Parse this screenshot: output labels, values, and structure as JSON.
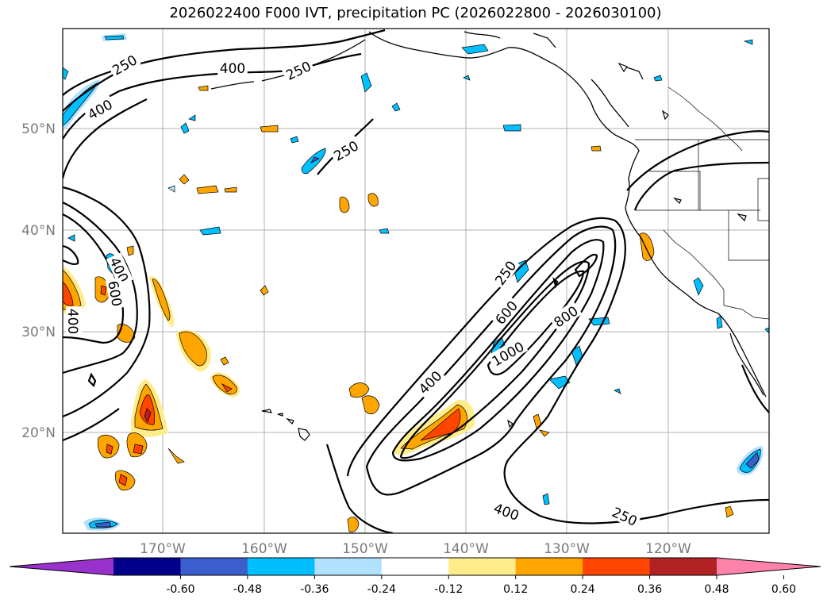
{
  "title": "2026022400 F000 IVT, precipitation PC (2026022800 - 2026030100)",
  "lon_labels": [
    "170°W",
    "160°W",
    "150°W",
    "140°W",
    "130°W",
    "120°W"
  ],
  "lat_labels": [
    "50°N",
    "40°N",
    "30°N",
    "20°N"
  ],
  "contour_labels": [
    "250",
    "400",
    "250",
    "400",
    "250",
    "400",
    "600",
    "400",
    "250",
    "600",
    "800",
    "1000",
    "400",
    "400",
    "250"
  ],
  "colorbar": {
    "colors": [
      "#9932cc",
      "#00008b",
      "#3a5fcd",
      "#00bfff",
      "#b0e2ff",
      "#ffffff",
      "#ffec8b",
      "#ffa500",
      "#ff4500",
      "#b22222",
      "#ff82ab"
    ],
    "ticks": [
      "-0.60",
      "-0.48",
      "-0.36",
      "-0.24",
      "-0.12",
      "0.12",
      "0.24",
      "0.36",
      "0.48",
      "0.60"
    ]
  }
}
